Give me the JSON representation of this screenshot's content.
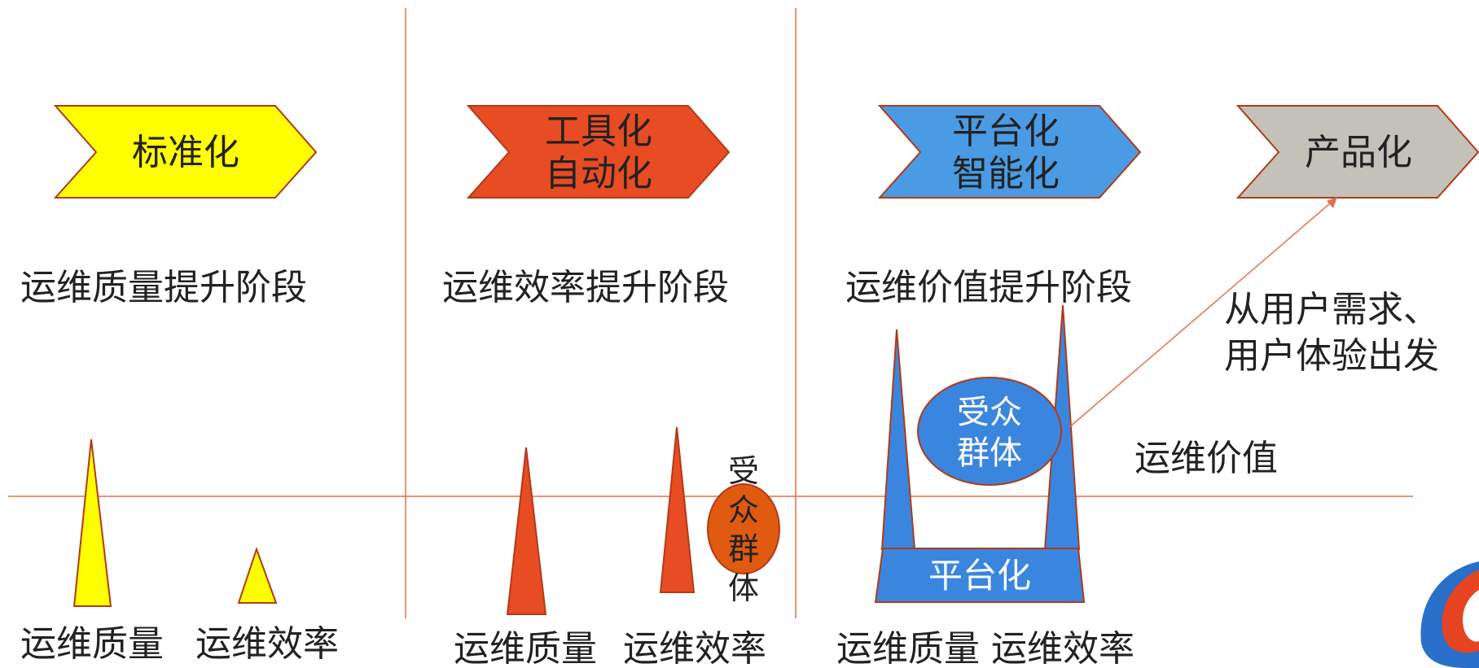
{
  "stages": [
    {
      "chevron_lines": [
        "标准化"
      ],
      "chevron_color": "#ffff00",
      "stage_title": "运维质量提升阶段",
      "bottom_label_1": "运维质量",
      "bottom_label_2": "运维效率"
    },
    {
      "chevron_lines": [
        "工具化",
        "自动化"
      ],
      "chevron_color": "#e84c22",
      "stage_title": "运维效率提升阶段",
      "side_circle_lines": [
        "受",
        "众",
        "群",
        "体"
      ],
      "bottom_label_1": "运维质量",
      "bottom_label_2": "运维效率"
    },
    {
      "chevron_lines": [
        "平台化",
        "智能化"
      ],
      "chevron_color": "#4a9be3",
      "stage_title": "运维价值提升阶段",
      "circle_lines": [
        "受众",
        "群体"
      ],
      "base_label": "平台化",
      "bottom_label": "运维质量 运维效率"
    },
    {
      "chevron_lines": [
        "产品化"
      ],
      "chevron_color": "#c4c2b8"
    }
  ],
  "annotation_lines": [
    "从用户需求、",
    "用户体验出发"
  ],
  "value_label": "运维价值",
  "colors": {
    "divider": "#e0704a",
    "outline": "#b13a1a",
    "yellow": "#ffff00",
    "orange_red": "#e84c22",
    "orange": "#e05a10",
    "blue": "#3a86df",
    "grey": "#c4c2b8"
  }
}
